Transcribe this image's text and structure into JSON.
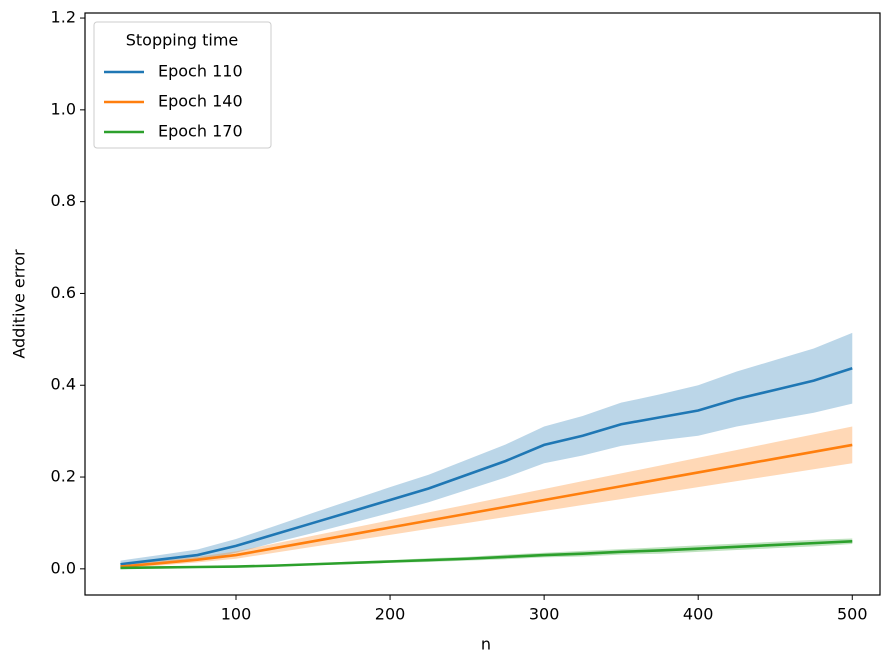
{
  "chart_data": {
    "type": "line",
    "xlabel": "n",
    "ylabel": "Additive error",
    "legend_title": "Stopping time",
    "legend": "upper left",
    "x": [
      25,
      50,
      75,
      100,
      125,
      150,
      175,
      200,
      225,
      250,
      275,
      300,
      325,
      350,
      375,
      400,
      425,
      450,
      475,
      500
    ],
    "series": [
      {
        "name": "Epoch 110",
        "color": "#1f77b4",
        "values": [
          0.01,
          0.02,
          0.03,
          0.05,
          0.075,
          0.1,
          0.125,
          0.15,
          0.175,
          0.205,
          0.235,
          0.27,
          0.29,
          0.315,
          0.33,
          0.345,
          0.37,
          0.39,
          0.41,
          0.437
        ],
        "lower": [
          0.002,
          0.01,
          0.018,
          0.035,
          0.057,
          0.078,
          0.1,
          0.122,
          0.145,
          0.172,
          0.199,
          0.23,
          0.247,
          0.268,
          0.28,
          0.29,
          0.31,
          0.325,
          0.34,
          0.36
        ],
        "upper": [
          0.018,
          0.03,
          0.042,
          0.065,
          0.093,
          0.122,
          0.15,
          0.178,
          0.205,
          0.238,
          0.271,
          0.31,
          0.333,
          0.362,
          0.38,
          0.4,
          0.43,
          0.455,
          0.48,
          0.514
        ]
      },
      {
        "name": "Epoch 140",
        "color": "#ff7f0e",
        "values": [
          0.005,
          0.012,
          0.02,
          0.03,
          0.045,
          0.06,
          0.075,
          0.09,
          0.105,
          0.12,
          0.135,
          0.15,
          0.165,
          0.18,
          0.195,
          0.21,
          0.225,
          0.24,
          0.255,
          0.27
        ],
        "lower": [
          0.001,
          0.007,
          0.014,
          0.022,
          0.035,
          0.048,
          0.061,
          0.074,
          0.087,
          0.1,
          0.113,
          0.126,
          0.139,
          0.152,
          0.165,
          0.178,
          0.191,
          0.204,
          0.217,
          0.23
        ],
        "upper": [
          0.009,
          0.017,
          0.026,
          0.038,
          0.055,
          0.072,
          0.089,
          0.106,
          0.123,
          0.14,
          0.157,
          0.174,
          0.191,
          0.208,
          0.225,
          0.242,
          0.259,
          0.276,
          0.293,
          0.31
        ]
      },
      {
        "name": "Epoch 170",
        "color": "#2ca02c",
        "values": [
          0.002,
          0.003,
          0.004,
          0.005,
          0.007,
          0.01,
          0.013,
          0.016,
          0.019,
          0.022,
          0.026,
          0.03,
          0.033,
          0.037,
          0.04,
          0.044,
          0.048,
          0.052,
          0.056,
          0.06
        ],
        "lower": [
          0.001,
          0.002,
          0.003,
          0.004,
          0.005,
          0.008,
          0.01,
          0.013,
          0.015,
          0.018,
          0.021,
          0.025,
          0.027,
          0.031,
          0.033,
          0.037,
          0.041,
          0.045,
          0.049,
          0.054
        ],
        "upper": [
          0.003,
          0.004,
          0.005,
          0.006,
          0.009,
          0.012,
          0.016,
          0.019,
          0.023,
          0.026,
          0.031,
          0.035,
          0.039,
          0.043,
          0.047,
          0.051,
          0.055,
          0.059,
          0.063,
          0.066
        ]
      }
    ],
    "xlim": [
      2,
      518
    ],
    "ylim": [
      -0.057,
      1.211
    ],
    "xticks": [
      100,
      200,
      300,
      400,
      500
    ],
    "yticks": [
      {
        "value": 0,
        "label": "0.0"
      },
      {
        "value": 0.2,
        "label": "0.2"
      },
      {
        "value": 0.4,
        "label": "0.4"
      },
      {
        "value": 0.6,
        "label": "0.6"
      },
      {
        "value": 0.8,
        "label": "0.8"
      },
      {
        "value": 1.0,
        "label": "1.0"
      },
      {
        "value": 1.2,
        "label": "1.2"
      }
    ]
  }
}
